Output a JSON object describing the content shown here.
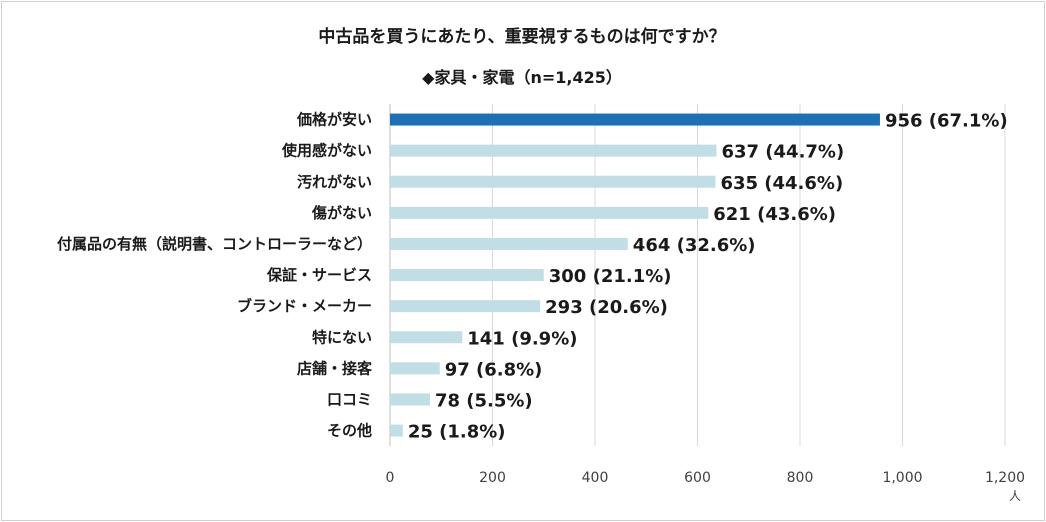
{
  "chart_data": {
    "type": "bar",
    "orientation": "horizontal",
    "title": "中古品を買うにあたり、重要視するものは何ですか？",
    "subtitle": "◆家具・家電（n=1,425）",
    "unit": "人",
    "categories": [
      "価格が安い",
      "使用感がない",
      "汚れがない",
      "傷がない",
      "付属品の有無（説明書、コントローラーなど）",
      "保証・サービス",
      "ブランド・メーカー",
      "特にない",
      "店舗・接客",
      "口コミ",
      "その他"
    ],
    "values": [
      956,
      637,
      635,
      621,
      464,
      300,
      293,
      141,
      97,
      78,
      25
    ],
    "data_labels": [
      "956 (67.1%)",
      "637 (44.7%)",
      "635 (44.6%)",
      "621 (43.6%)",
      "464 (32.6%)",
      "300 (21.1%)",
      "293 (20.6%)",
      "141 (9.9%)",
      "97 (6.8%)",
      "78 (5.5%)",
      "25 (1.8%)"
    ],
    "xlim": [
      0,
      1200
    ],
    "xticks": [
      0,
      200,
      400,
      600,
      800,
      1000,
      1200
    ],
    "xtick_labels": [
      "0",
      "200",
      "400",
      "600",
      "800",
      "1,000",
      "1,200"
    ],
    "grid": true,
    "colors": {
      "highlight": "#1f6fb4",
      "bar": "#c1dde6",
      "grid": "#d9d9d9"
    }
  }
}
